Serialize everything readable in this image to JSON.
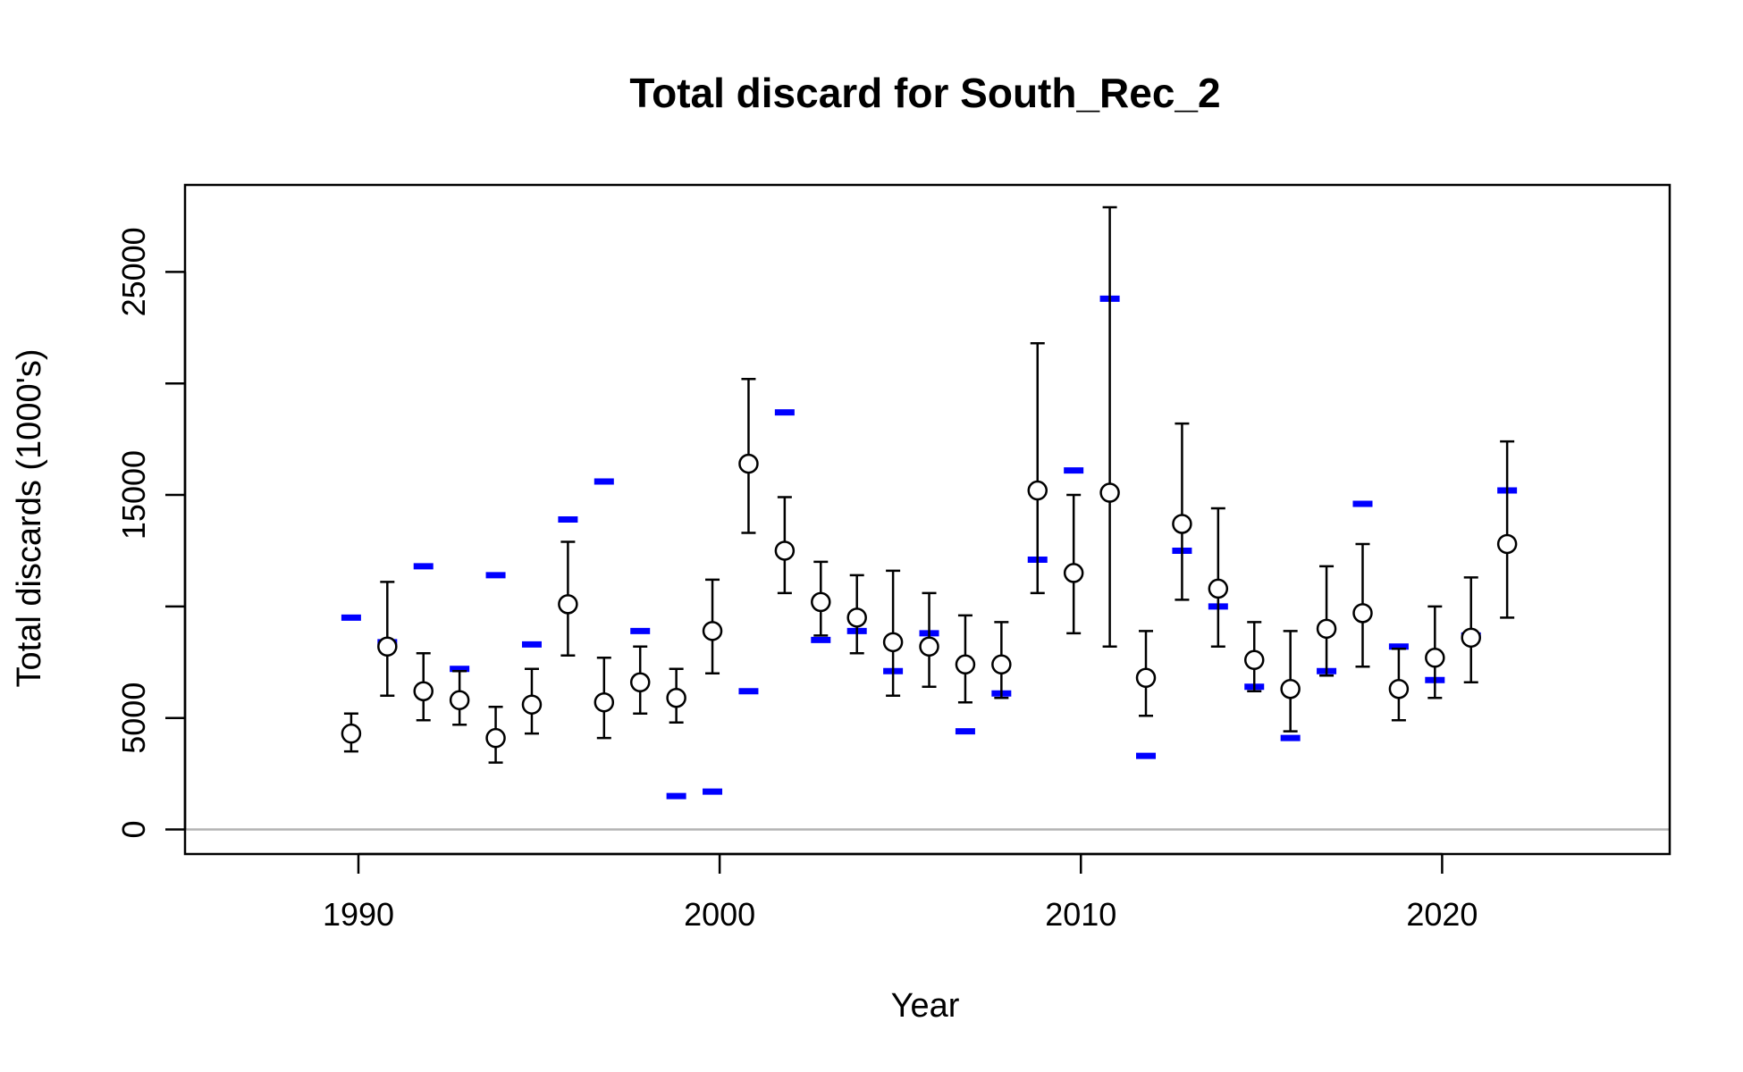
{
  "chart_data": {
    "type": "scatter",
    "title": "Total discard for South_Rec_2",
    "xlabel": "Year",
    "ylabel": "Total discards (1000's)",
    "xlim": [
      1985.2,
      2026.3
    ],
    "ylim": [
      -1100,
      28900
    ],
    "x_ticks": [
      1990,
      2000,
      2010,
      2020
    ],
    "y_ticks": [
      0,
      5000,
      15000,
      25000
    ],
    "y_gridlines_unlabeled": [
      10000,
      20000
    ],
    "reference_line": {
      "y": 0,
      "color": "#b3b3b3"
    },
    "colors": {
      "observed": "#000000",
      "expected": "#0000ff",
      "frame": "#000000"
    },
    "series": [
      {
        "marker": "open-circle-with-error-bars",
        "points": [
          {
            "x": 1989.8,
            "y": 4300,
            "lo": 3500,
            "hi": 5200
          },
          {
            "x": 1990.8,
            "y": 8200,
            "lo": 6000,
            "hi": 11100
          },
          {
            "x": 1991.8,
            "y": 6200,
            "lo": 4900,
            "hi": 7900
          },
          {
            "x": 1992.8,
            "y": 5800,
            "lo": 4700,
            "hi": 7100
          },
          {
            "x": 1993.8,
            "y": 4100,
            "lo": 3000,
            "hi": 5500
          },
          {
            "x": 1994.8,
            "y": 5600,
            "lo": 4300,
            "hi": 7200
          },
          {
            "x": 1995.8,
            "y": 10100,
            "lo": 7800,
            "hi": 12900
          },
          {
            "x": 1996.8,
            "y": 5700,
            "lo": 4100,
            "hi": 7700
          },
          {
            "x": 1997.8,
            "y": 6600,
            "lo": 5200,
            "hi": 8200
          },
          {
            "x": 1998.8,
            "y": 5900,
            "lo": 4800,
            "hi": 7200
          },
          {
            "x": 1999.8,
            "y": 8900,
            "lo": 7000,
            "hi": 11200
          },
          {
            "x": 2000.8,
            "y": 16400,
            "lo": 13300,
            "hi": 20200
          },
          {
            "x": 2001.8,
            "y": 12500,
            "lo": 10600,
            "hi": 14900
          },
          {
            "x": 2002.8,
            "y": 10200,
            "lo": 8700,
            "hi": 12000
          },
          {
            "x": 2003.8,
            "y": 9500,
            "lo": 7900,
            "hi": 11400
          },
          {
            "x": 2004.8,
            "y": 8400,
            "lo": 6000,
            "hi": 11600
          },
          {
            "x": 2005.8,
            "y": 8200,
            "lo": 6400,
            "hi": 10600
          },
          {
            "x": 2006.8,
            "y": 7400,
            "lo": 5700,
            "hi": 9600
          },
          {
            "x": 2007.8,
            "y": 7400,
            "lo": 5900,
            "hi": 9300
          },
          {
            "x": 2008.8,
            "y": 15200,
            "lo": 10600,
            "hi": 21800
          },
          {
            "x": 2009.8,
            "y": 11500,
            "lo": 8800,
            "hi": 15000
          },
          {
            "x": 2010.8,
            "y": 15100,
            "lo": 8200,
            "hi": 27900
          },
          {
            "x": 2011.8,
            "y": 6800,
            "lo": 5100,
            "hi": 8900
          },
          {
            "x": 2012.8,
            "y": 13700,
            "lo": 10300,
            "hi": 18200
          },
          {
            "x": 2013.8,
            "y": 10800,
            "lo": 8200,
            "hi": 14400
          },
          {
            "x": 2014.8,
            "y": 7600,
            "lo": 6200,
            "hi": 9300
          },
          {
            "x": 2015.8,
            "y": 6300,
            "lo": 4400,
            "hi": 8900
          },
          {
            "x": 2016.8,
            "y": 9000,
            "lo": 6900,
            "hi": 11800
          },
          {
            "x": 2017.8,
            "y": 9700,
            "lo": 7300,
            "hi": 12800
          },
          {
            "x": 2018.8,
            "y": 6300,
            "lo": 4900,
            "hi": 8100
          },
          {
            "x": 2019.8,
            "y": 7700,
            "lo": 5900,
            "hi": 10000
          },
          {
            "x": 2020.8,
            "y": 8600,
            "lo": 6600,
            "hi": 11300
          },
          {
            "x": 2021.8,
            "y": 12800,
            "lo": 9500,
            "hi": 17400
          }
        ]
      },
      {
        "marker": "blue-dash",
        "points": [
          {
            "x": 1989.8,
            "y": 9500
          },
          {
            "x": 1990.8,
            "y": 8400
          },
          {
            "x": 1991.8,
            "y": 11800
          },
          {
            "x": 1992.8,
            "y": 7200
          },
          {
            "x": 1993.8,
            "y": 11400
          },
          {
            "x": 1994.8,
            "y": 8300
          },
          {
            "x": 1995.8,
            "y": 13900
          },
          {
            "x": 1996.8,
            "y": 15600
          },
          {
            "x": 1997.8,
            "y": 8900
          },
          {
            "x": 1998.8,
            "y": 1500
          },
          {
            "x": 1999.8,
            "y": 1700
          },
          {
            "x": 2000.8,
            "y": 6200
          },
          {
            "x": 2001.8,
            "y": 18700
          },
          {
            "x": 2002.8,
            "y": 8500
          },
          {
            "x": 2003.8,
            "y": 8900
          },
          {
            "x": 2004.8,
            "y": 7100
          },
          {
            "x": 2005.8,
            "y": 8800
          },
          {
            "x": 2006.8,
            "y": 4400
          },
          {
            "x": 2007.8,
            "y": 6100
          },
          {
            "x": 2008.8,
            "y": 12100
          },
          {
            "x": 2009.8,
            "y": 16100
          },
          {
            "x": 2010.8,
            "y": 23800
          },
          {
            "x": 2011.8,
            "y": 3300
          },
          {
            "x": 2012.8,
            "y": 12500
          },
          {
            "x": 2013.8,
            "y": 10000
          },
          {
            "x": 2014.8,
            "y": 6400
          },
          {
            "x": 2015.8,
            "y": 4100
          },
          {
            "x": 2016.8,
            "y": 7100
          },
          {
            "x": 2017.8,
            "y": 14600
          },
          {
            "x": 2018.8,
            "y": 8200
          },
          {
            "x": 2019.8,
            "y": 6700
          },
          {
            "x": 2020.8,
            "y": 8700
          },
          {
            "x": 2021.8,
            "y": 15200
          }
        ]
      }
    ]
  }
}
